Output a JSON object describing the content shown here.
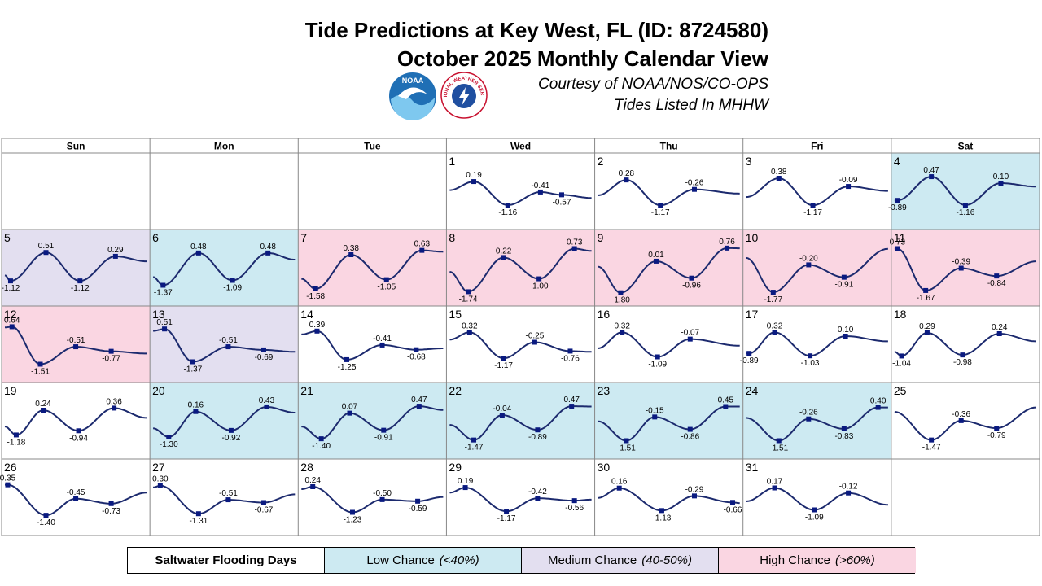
{
  "header": {
    "title_line1": "Tide Predictions at Key West, FL (ID: 8724580)",
    "title_line2": "October 2025 Monthly Calendar View",
    "courtesy": "Courtesy of NOAA/NOS/CO-OPS",
    "datum_note": "Tides Listed In MHHW",
    "noaa_logo_text": "NOAA",
    "nws_logo_text": "NATIONAL WEATHER SERVICE"
  },
  "legend": {
    "label": "Saltwater Flooding Days",
    "low": {
      "name": "Low Chance",
      "range": "(<40%)"
    },
    "medium": {
      "name": "Medium Chance",
      "range": "(40-50%)"
    },
    "high": {
      "name": "High Chance",
      "range": "(>60%)"
    }
  },
  "colors": {
    "low": "#cdeaf2",
    "medium": "#e3dff0",
    "high": "#fad6e2",
    "curve": "#1c2a6e",
    "marker": "#0a1a80",
    "grid": "#888888"
  },
  "chart_data": {
    "type": "line",
    "weekdays": [
      "Sun",
      "Mon",
      "Tue",
      "Wed",
      "Thu",
      "Fri",
      "Sat"
    ],
    "first_weekday_index": 3,
    "ylim": [
      -2.0,
      0.8
    ],
    "days": [
      {
        "day": 1,
        "flood": "none",
        "t0": -0.3,
        "t1": -0.75,
        "tides": [
          [
            0.17,
            0.19
          ],
          [
            0.41,
            -1.16
          ],
          [
            0.64,
            -0.41
          ],
          [
            0.79,
            -0.57
          ]
        ]
      },
      {
        "day": 2,
        "flood": "none",
        "t0": -0.6,
        "t1": -0.5,
        "tides": [
          [
            0.2,
            0.28
          ],
          [
            0.44,
            -1.17
          ],
          [
            0.68,
            -0.26
          ]
        ]
      },
      {
        "day": 3,
        "flood": "none",
        "t0": -0.7,
        "t1": -0.35,
        "tides": [
          [
            0.23,
            0.38
          ],
          [
            0.47,
            -1.17
          ],
          [
            0.72,
            -0.09
          ]
        ]
      },
      {
        "day": 4,
        "flood": "low",
        "t0": -0.89,
        "t1": -0.1,
        "tides": [
          [
            0.02,
            -0.89
          ],
          [
            0.26,
            0.47
          ],
          [
            0.5,
            -1.16
          ],
          [
            0.75,
            0.1
          ]
        ]
      },
      {
        "day": 5,
        "flood": "medium",
        "t0": -0.8,
        "t1": 0.0,
        "tides": [
          [
            0.04,
            -1.12
          ],
          [
            0.29,
            0.51
          ],
          [
            0.53,
            -1.12
          ],
          [
            0.78,
            0.29
          ]
        ]
      },
      {
        "day": 6,
        "flood": "low",
        "t0": -0.9,
        "t1": 0.1,
        "tides": [
          [
            0.07,
            -1.37
          ],
          [
            0.32,
            0.48
          ],
          [
            0.56,
            -1.09
          ],
          [
            0.81,
            0.48
          ]
        ]
      },
      {
        "day": 7,
        "flood": "high",
        "t0": -1.0,
        "t1": 0.55,
        "tides": [
          [
            0.1,
            -1.58
          ],
          [
            0.35,
            0.38
          ],
          [
            0.6,
            -1.05
          ],
          [
            0.85,
            0.63
          ]
        ]
      },
      {
        "day": 8,
        "flood": "high",
        "t0": -0.6,
        "t1": 0.6,
        "tides": [
          [
            0.13,
            -1.74
          ],
          [
            0.38,
            0.22
          ],
          [
            0.63,
            -1.0
          ],
          [
            0.88,
            0.73
          ]
        ]
      },
      {
        "day": 9,
        "flood": "high",
        "t0": -0.3,
        "t1": 0.75,
        "tides": [
          [
            0.16,
            -1.8
          ],
          [
            0.41,
            0.01
          ],
          [
            0.66,
            -0.96
          ],
          [
            0.91,
            0.76
          ]
        ]
      },
      {
        "day": 10,
        "flood": "high",
        "t0": 0.2,
        "t1": 0.72,
        "tides": [
          [
            0.19,
            -1.77
          ],
          [
            0.44,
            -0.2
          ],
          [
            0.69,
            -0.91
          ]
        ]
      },
      {
        "day": 11,
        "flood": "high",
        "t0": 0.73,
        "t1": 0.0,
        "tides": [
          [
            0.02,
            0.73
          ],
          [
            0.22,
            -1.67
          ],
          [
            0.47,
            -0.39
          ],
          [
            0.72,
            -0.84
          ]
        ]
      },
      {
        "day": 12,
        "flood": "high",
        "t0": 0.6,
        "t1": -0.9,
        "tides": [
          [
            0.05,
            0.64
          ],
          [
            0.25,
            -1.51
          ],
          [
            0.5,
            -0.51
          ],
          [
            0.75,
            -0.77
          ]
        ]
      },
      {
        "day": 13,
        "flood": "medium",
        "t0": 0.4,
        "t1": -0.8,
        "tides": [
          [
            0.08,
            0.51
          ],
          [
            0.28,
            -1.37
          ],
          [
            0.53,
            -0.51
          ],
          [
            0.78,
            -0.69
          ]
        ]
      },
      {
        "day": 14,
        "flood": "none",
        "t0": 0.2,
        "t1": -0.6,
        "tides": [
          [
            0.11,
            0.39
          ],
          [
            0.32,
            -1.25
          ],
          [
            0.57,
            -0.41
          ],
          [
            0.81,
            -0.68
          ]
        ]
      },
      {
        "day": 15,
        "flood": "none",
        "t0": -0.1,
        "t1": -0.8,
        "tides": [
          [
            0.14,
            0.32
          ],
          [
            0.38,
            -1.17
          ],
          [
            0.6,
            -0.25
          ],
          [
            0.85,
            -0.76
          ]
        ]
      },
      {
        "day": 16,
        "flood": "none",
        "t0": -0.6,
        "t1": -0.45,
        "tides": [
          [
            0.17,
            0.32
          ],
          [
            0.42,
            -1.09
          ],
          [
            0.65,
            -0.07
          ]
        ]
      },
      {
        "day": 17,
        "flood": "none",
        "t0": -0.89,
        "t1": -0.2,
        "tides": [
          [
            0.02,
            -0.89
          ],
          [
            0.2,
            0.32
          ],
          [
            0.45,
            -1.03
          ],
          [
            0.7,
            0.1
          ]
        ]
      },
      {
        "day": 18,
        "flood": "none",
        "t0": -0.8,
        "t1": -0.2,
        "tides": [
          [
            0.05,
            -1.04
          ],
          [
            0.23,
            0.29
          ],
          [
            0.48,
            -0.98
          ],
          [
            0.74,
            0.24
          ]
        ]
      },
      {
        "day": 19,
        "flood": "none",
        "t0": -0.7,
        "t1": -0.2,
        "tides": [
          [
            0.08,
            -1.18
          ],
          [
            0.27,
            0.24
          ],
          [
            0.52,
            -0.94
          ],
          [
            0.77,
            0.36
          ]
        ]
      },
      {
        "day": 20,
        "flood": "low",
        "t0": -0.8,
        "t1": 0.1,
        "tides": [
          [
            0.11,
            -1.3
          ],
          [
            0.3,
            0.16
          ],
          [
            0.55,
            -0.92
          ],
          [
            0.8,
            0.43
          ]
        ]
      },
      {
        "day": 21,
        "flood": "low",
        "t0": -0.7,
        "t1": 0.25,
        "tides": [
          [
            0.14,
            -1.4
          ],
          [
            0.34,
            0.07
          ],
          [
            0.58,
            -0.91
          ],
          [
            0.83,
            0.47
          ]
        ]
      },
      {
        "day": 22,
        "flood": "low",
        "t0": -0.6,
        "t1": 0.45,
        "tides": [
          [
            0.17,
            -1.47
          ],
          [
            0.37,
            -0.04
          ],
          [
            0.62,
            -0.89
          ],
          [
            0.86,
            0.47
          ]
        ]
      },
      {
        "day": 23,
        "flood": "low",
        "t0": -0.4,
        "t1": 0.45,
        "tides": [
          [
            0.2,
            -1.51
          ],
          [
            0.4,
            -0.15
          ],
          [
            0.65,
            -0.86
          ],
          [
            0.9,
            0.45
          ]
        ]
      },
      {
        "day": 24,
        "flood": "low",
        "t0": -0.2,
        "t1": 0.4,
        "tides": [
          [
            0.23,
            -1.51
          ],
          [
            0.44,
            -0.26
          ],
          [
            0.69,
            -0.83
          ],
          [
            0.93,
            0.4
          ]
        ]
      },
      {
        "day": 25,
        "flood": "none",
        "t0": 0.15,
        "t1": 0.4,
        "tides": [
          [
            0.26,
            -1.47
          ],
          [
            0.47,
            -0.36
          ],
          [
            0.72,
            -0.79
          ]
        ]
      },
      {
        "day": 26,
        "flood": "none",
        "t0": 0.35,
        "t1": -0.1,
        "tides": [
          [
            0.02,
            0.35
          ],
          [
            0.29,
            -1.4
          ],
          [
            0.5,
            -0.45
          ],
          [
            0.75,
            -0.73
          ]
        ]
      },
      {
        "day": 27,
        "flood": "none",
        "t0": 0.2,
        "t1": -0.2,
        "tides": [
          [
            0.05,
            0.3
          ],
          [
            0.32,
            -1.31
          ],
          [
            0.53,
            -0.51
          ],
          [
            0.78,
            -0.67
          ]
        ]
      },
      {
        "day": 28,
        "flood": "none",
        "t0": 0.1,
        "t1": -0.35,
        "tides": [
          [
            0.08,
            0.24
          ],
          [
            0.36,
            -1.23
          ],
          [
            0.57,
            -0.5
          ],
          [
            0.82,
            -0.59
          ]
        ]
      },
      {
        "day": 29,
        "flood": "none",
        "t0": -0.1,
        "t1": -0.5,
        "tides": [
          [
            0.11,
            0.19
          ],
          [
            0.4,
            -1.17
          ],
          [
            0.62,
            -0.42
          ],
          [
            0.88,
            -0.56
          ]
        ]
      },
      {
        "day": 30,
        "flood": "none",
        "t0": -0.4,
        "t1": -0.7,
        "tides": [
          [
            0.15,
            0.16
          ],
          [
            0.45,
            -1.13
          ],
          [
            0.68,
            -0.29
          ],
          [
            0.95,
            -0.66
          ]
        ]
      },
      {
        "day": 31,
        "flood": "none",
        "t0": -0.6,
        "t1": -0.8,
        "tides": [
          [
            0.2,
            0.17
          ],
          [
            0.48,
            -1.09
          ],
          [
            0.72,
            -0.12
          ]
        ]
      }
    ]
  }
}
